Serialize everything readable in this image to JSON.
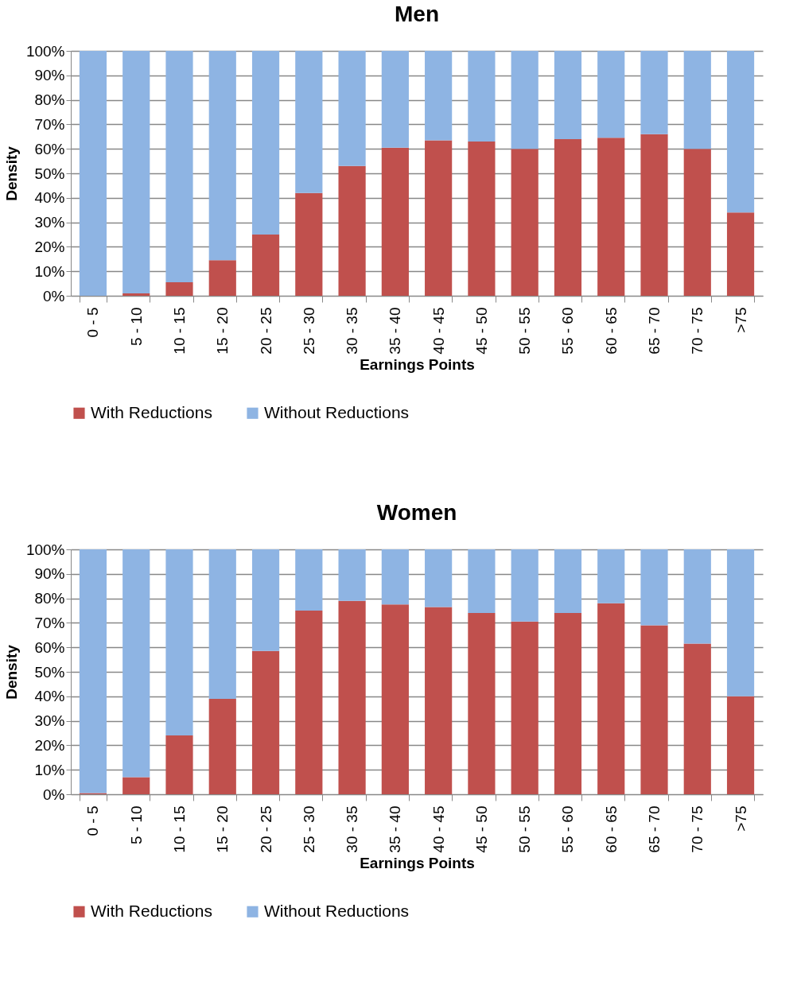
{
  "chart_data": [
    {
      "type": "bar",
      "title": "Men",
      "xlabel": "Earnings Points",
      "ylabel": "Density",
      "stacked": true,
      "legend": "bottom",
      "grid": "y",
      "categories": [
        "0 - 5",
        "5 - 10",
        "10 - 15",
        "15 - 20",
        "20 - 25",
        "25 - 30",
        "30 - 35",
        "35 - 40",
        "40 - 45",
        "45 - 50",
        "50 - 55",
        "55 - 60",
        "60 - 65",
        "65 - 70",
        "70 - 75",
        ">75"
      ],
      "series": [
        {
          "name": "With Reductions",
          "color": "#c0504d",
          "values": [
            0,
            1,
            5.5,
            14.5,
            25,
            42,
            53,
            60.5,
            63.5,
            63,
            60,
            64,
            64.5,
            66,
            60,
            34
          ]
        },
        {
          "name": "Without Reductions",
          "color": "#8eb4e3",
          "values": [
            100,
            99,
            94.5,
            85.5,
            75,
            58,
            47,
            39.5,
            36.5,
            37,
            40,
            36,
            35.5,
            34,
            40,
            66
          ]
        }
      ],
      "ylim": [
        0,
        100
      ],
      "yticks": [
        {
          "value": 0,
          "label": "0%"
        },
        {
          "value": 10,
          "label": "10%"
        },
        {
          "value": 20,
          "label": "20%"
        },
        {
          "value": 30,
          "label": "30%"
        },
        {
          "value": 40,
          "label": "40%"
        },
        {
          "value": 50,
          "label": "50%"
        },
        {
          "value": 60,
          "label": "60%"
        },
        {
          "value": 70,
          "label": "70%"
        },
        {
          "value": 80,
          "label": "80%"
        },
        {
          "value": 90,
          "label": "90%"
        },
        {
          "value": 100,
          "label": "100%"
        }
      ]
    },
    {
      "type": "bar",
      "title": "Women",
      "xlabel": "Earnings Points",
      "ylabel": "Density",
      "stacked": true,
      "legend": "bottom",
      "grid": "y",
      "categories": [
        "0 - 5",
        "5 - 10",
        "10 - 15",
        "15 - 20",
        "20 - 25",
        "25 - 30",
        "30 - 35",
        "35 - 40",
        "40 - 45",
        "45 - 50",
        "50 - 55",
        "55 - 60",
        "60 - 65",
        "65 - 70",
        "70 - 75",
        ">75"
      ],
      "series": [
        {
          "name": "With Reductions",
          "color": "#c0504d",
          "values": [
            0.5,
            7,
            24,
            39,
            58.5,
            75,
            79,
            77.5,
            76.5,
            74,
            70.5,
            74,
            78,
            69,
            61.5,
            40
          ]
        },
        {
          "name": "Without Reductions",
          "color": "#8eb4e3",
          "values": [
            99.5,
            93,
            76,
            61,
            41.5,
            25,
            21,
            22.5,
            23.5,
            26,
            29.5,
            26,
            22,
            31,
            38.5,
            60
          ]
        }
      ],
      "ylim": [
        0,
        100
      ],
      "yticks": [
        {
          "value": 0,
          "label": "0%"
        },
        {
          "value": 10,
          "label": "10%"
        },
        {
          "value": 20,
          "label": "20%"
        },
        {
          "value": 30,
          "label": "30%"
        },
        {
          "value": 40,
          "label": "40%"
        },
        {
          "value": 50,
          "label": "50%"
        },
        {
          "value": 60,
          "label": "60%"
        },
        {
          "value": 70,
          "label": "70%"
        },
        {
          "value": 80,
          "label": "80%"
        },
        {
          "value": 90,
          "label": "90%"
        },
        {
          "value": 100,
          "label": "100%"
        }
      ]
    }
  ]
}
